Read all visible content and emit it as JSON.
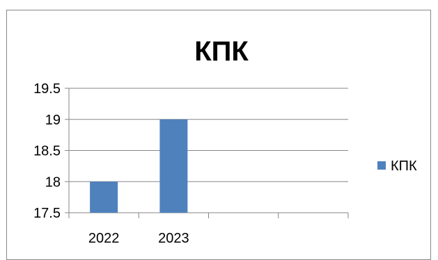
{
  "chart_data": {
    "type": "bar",
    "title": "КПК",
    "categories": [
      "2022",
      "2023",
      "",
      ""
    ],
    "series": [
      {
        "name": "КПК",
        "values": [
          18,
          19,
          null,
          null
        ],
        "color": "#4f81bd"
      }
    ],
    "ylim": [
      17.5,
      19.5
    ],
    "yticks": [
      "17.5",
      "18",
      "18.5",
      "19",
      "19.5"
    ],
    "grid": true,
    "legend": "right"
  }
}
